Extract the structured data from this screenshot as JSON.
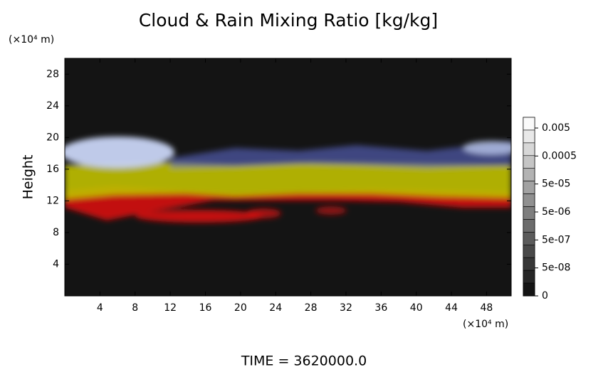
{
  "chart_data": {
    "type": "heatmap",
    "title": "Cloud & Rain Mixing Ratio [kg/kg]",
    "ylabel": "Height",
    "xunit": "(×10⁴ m)",
    "yunit": "(×10⁴ m)",
    "footer": "TIME = 3620000.0",
    "xlim": [
      0,
      50.8
    ],
    "xticks": [
      4,
      8,
      12,
      16,
      20,
      24,
      28,
      32,
      36,
      40,
      44,
      48
    ],
    "ylim": [
      0,
      30
    ],
    "yticks": [
      4,
      8,
      12,
      16,
      20,
      24,
      28
    ],
    "colorbar_ticks": [
      0,
      {
        "value": 5e-08,
        "label": "5e-08"
      },
      {
        "value": 5e-07,
        "label": "5e-07"
      },
      {
        "value": 5e-06,
        "label": "5e-06"
      },
      {
        "value": 5e-05,
        "label": "5e-05"
      },
      0.0005,
      0.005
    ]
  }
}
